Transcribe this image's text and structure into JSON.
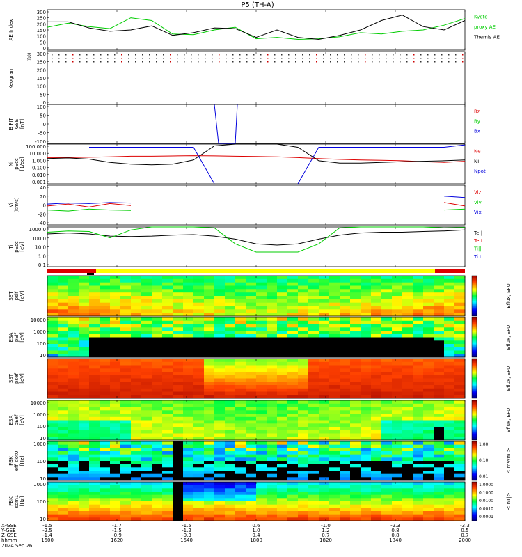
{
  "title": "P5 (TH-A)",
  "panels": [
    {
      "id": "ae",
      "ylabel": "AE Index",
      "yticks": [
        "300",
        "250",
        "200",
        "150",
        "100",
        "50",
        "0"
      ],
      "legend": [
        {
          "text": "Kyoto",
          "color": "#00cc00"
        },
        {
          "text": "proxy AE",
          "color": "#00cc00"
        },
        {
          "text": "Themis AE",
          "color": "#000000"
        }
      ]
    },
    {
      "id": "keogram",
      "ylabel": "Keogram",
      "yticks": [
        "300",
        "250",
        "200",
        "150",
        "100",
        "50",
        "0"
      ],
      "top_label": "(R0)"
    },
    {
      "id": "bfit",
      "ylabel": "B FIT",
      "ylabel2": "GSE",
      "ylabel3": "[nT]",
      "yticks": [
        "100",
        "50",
        "0",
        "-50",
        "-100"
      ],
      "legend": [
        {
          "text": "Bz",
          "color": "#dd0000"
        },
        {
          "text": "By",
          "color": "#00cc00"
        },
        {
          "text": "Bx",
          "color": "#0000dd"
        }
      ]
    },
    {
      "id": "density",
      "ylabel": "Ni",
      "ylabel2": "pEcc",
      "ylabel3": "[1/cc]",
      "yticks": [
        "100.000",
        "10.000",
        "1.000",
        "0.100",
        "0.010",
        "0.001"
      ],
      "legend": [
        {
          "text": "Ne",
          "color": "#dd0000"
        },
        {
          "text": "Ni",
          "color": "#000000"
        },
        {
          "text": "Npot",
          "color": "#0000dd"
        }
      ]
    },
    {
      "id": "velocity",
      "ylabel": "Vi",
      "ylabel2": "[km/s]",
      "yticks": [
        "40",
        "20",
        "0",
        "-20",
        "-40"
      ],
      "legend": [
        {
          "text": "Viz",
          "color": "#dd0000"
        },
        {
          "text": "Viy",
          "color": "#00cc00"
        },
        {
          "text": "Vix",
          "color": "#0000dd"
        }
      ]
    },
    {
      "id": "temperature",
      "ylabel": "Ti",
      "ylabel2": "pEcc",
      "ylabel3": "[eV]",
      "yticks": [
        "1000.0",
        "100.0",
        "10.0",
        "1.0",
        "0.1"
      ],
      "legend": [
        {
          "text": "Te||",
          "color": "#000000"
        },
        {
          "text": "Te⊥",
          "color": "#dd0000"
        },
        {
          "text": "Ti||",
          "color": "#00cc00"
        },
        {
          "text": "Ti⊥",
          "color": "#0000dd"
        }
      ]
    },
    {
      "id": "sst_i",
      "ylabel": "SST",
      "ylabel2": "psif",
      "ylabel3": "[eV]",
      "cb_label": "Eflux, EFU"
    },
    {
      "id": "esa_i",
      "ylabel": "ESA",
      "ylabel2": "pEif",
      "ylabel3": "[eV]",
      "yticks": [
        "10000",
        "1000",
        "100",
        "10"
      ],
      "cb_label": "Eflux, EFU"
    },
    {
      "id": "sst_e",
      "ylabel": "SST",
      "ylabel2": "psef",
      "ylabel3": "[eV]",
      "cb_label": "Eflux, EFU"
    },
    {
      "id": "esa_e",
      "ylabel": "ESA",
      "ylabel2": "pEef",
      "ylabel3": "[eV]",
      "yticks": [
        "10000",
        "1000",
        "100",
        "10"
      ],
      "cb_label": "Eflux, EFU"
    },
    {
      "id": "fbk_e",
      "ylabel": "FBK",
      "ylabel2": "eff_dot0",
      "ylabel3": "[Hz]",
      "yticks": [
        "1000",
        "100",
        "10"
      ],
      "cb_label": "<|mV/m|>",
      "cb_ticks": [
        "1.00",
        "0.10",
        "0.01"
      ]
    },
    {
      "id": "fbk_b",
      "ylabel": "FBK",
      "ylabel2": "scm1",
      "ylabel3": "[Hz]",
      "yticks": [
        "1000",
        "100",
        "10"
      ],
      "cb_label": "<|nT|>",
      "cb_ticks": [
        "1.0000",
        "0.1000",
        "0.0100",
        "0.0010",
        "0.0001"
      ]
    }
  ],
  "footer": {
    "rows": [
      {
        "label": "X-GSE",
        "values": [
          "-1.5",
          "-1.7",
          "-1.5",
          "0.6",
          "-1.0",
          "-2.3",
          "-3.3"
        ]
      },
      {
        "label": "Y-GSE",
        "values": [
          "-2.5",
          "-1.5",
          "-1.2",
          "1.0",
          "1.2",
          "0.8",
          "0.5"
        ]
      },
      {
        "label": "Z-GSE",
        "values": [
          "-1.4",
          "-0.9",
          "-0.3",
          "0.4",
          "0.7",
          "0.8",
          "0.7"
        ]
      },
      {
        "label": "hhmm",
        "values": [
          "1600",
          "1620",
          "1640",
          "1800",
          "1820",
          "1840",
          "2000"
        ]
      }
    ],
    "date": "2024 Sep 26"
  },
  "chart_data": [
    {
      "type": "line",
      "panel": "ae",
      "ylabel": "AE Index",
      "ylim": [
        0,
        300
      ],
      "x": [
        0,
        0.05,
        0.1,
        0.15,
        0.2,
        0.25,
        0.3,
        0.35,
        0.4,
        0.45,
        0.5,
        0.55,
        0.6,
        0.65,
        0.7,
        0.75,
        0.8,
        0.85,
        0.9,
        0.95,
        1.0
      ],
      "series": [
        {
          "name": "Kyoto proxy AE",
          "color": "#00cc00",
          "values": [
            170,
            200,
            175,
            160,
            240,
            220,
            120,
            115,
            150,
            170,
            85,
            95,
            80,
            85,
            100,
            130,
            120,
            140,
            150,
            185,
            235
          ]
        },
        {
          "name": "Themis AE",
          "color": "#000000",
          "values": [
            210,
            210,
            165,
            140,
            150,
            180,
            110,
            130,
            165,
            160,
            95,
            150,
            95,
            80,
            110,
            150,
            220,
            260,
            175,
            150,
            220
          ]
        }
      ]
    },
    {
      "type": "line",
      "panel": "bfit",
      "ylim": [
        -100,
        100
      ],
      "series": [
        {
          "name": "Bx",
          "color": "#0000dd",
          "points": [
            [
              0.4,
              100
            ],
            [
              0.41,
              -100
            ],
            [
              0.45,
              -100
            ],
            [
              0.455,
              100
            ]
          ]
        }
      ]
    },
    {
      "type": "line",
      "panel": "density",
      "ylim": [
        0.001,
        100
      ],
      "scale": "log",
      "series": [
        {
          "name": "Ne",
          "color": "#dd0000",
          "values": [
            2,
            2,
            2.2,
            2.5,
            3,
            3,
            3.2,
            3.5,
            3.3,
            3,
            2.8,
            2.5,
            2,
            1.5,
            1.2,
            1,
            0.9,
            0.8,
            0.6,
            0.5,
            0.7
          ]
        },
        {
          "name": "Ni",
          "color": "#000000",
          "values": [
            1.5,
            1.8,
            1.3,
            0.5,
            0.3,
            0.25,
            0.3,
            1,
            60,
            100,
            100,
            100,
            40,
            0.8,
            0.4,
            0.4,
            0.5,
            0.6,
            0.7,
            0.8,
            1
          ]
        },
        {
          "name": "Npot",
          "color": "#0000dd",
          "values": [
            null,
            null,
            40,
            40,
            40,
            40,
            40,
            40,
            0.001,
            null,
            null,
            null,
            0.001,
            40,
            40,
            40,
            40,
            40,
            40,
            40,
            80
          ]
        }
      ]
    },
    {
      "type": "line",
      "panel": "velocity",
      "ylim": [
        -40,
        40
      ],
      "series": [
        {
          "name": "Viz",
          "color": "#dd0000",
          "values": [
            -2,
            2,
            -4,
            3,
            -1,
            null,
            null,
            null,
            null,
            null,
            null,
            null,
            null,
            null,
            null,
            null,
            null,
            null,
            null,
            5,
            -2
          ]
        },
        {
          "name": "Viy",
          "color": "#00cc00",
          "values": [
            -10,
            -12,
            -8,
            -10,
            -11,
            null,
            null,
            null,
            null,
            null,
            null,
            null,
            null,
            null,
            null,
            null,
            null,
            null,
            null,
            -10,
            -8
          ]
        },
        {
          "name": "Vix",
          "color": "#0000dd",
          "values": [
            2,
            4,
            3,
            5,
            4,
            null,
            null,
            null,
            null,
            null,
            null,
            null,
            null,
            null,
            null,
            null,
            null,
            null,
            null,
            18,
            15
          ]
        }
      ]
    },
    {
      "type": "line",
      "panel": "temperature",
      "ylim": [
        0.1,
        1000
      ],
      "scale": "log",
      "series": [
        {
          "name": "Te||",
          "color": "#000000",
          "values": [
            200,
            250,
            200,
            120,
            110,
            120,
            150,
            170,
            120,
            60,
            20,
            15,
            20,
            60,
            150,
            250,
            300,
            300,
            350,
            400,
            500
          ]
        },
        {
          "name": "Ti||",
          "color": "#00cc00",
          "values": [
            300,
            400,
            350,
            80,
            500,
            1000,
            1000,
            1000,
            800,
            20,
            3,
            3,
            3,
            20,
            800,
            1000,
            1000,
            1000,
            1000,
            800,
            900
          ]
        }
      ]
    },
    {
      "type": "heatmap",
      "panel": "sst_i",
      "zlabel": "Eflux, EFU"
    },
    {
      "type": "heatmap",
      "panel": "esa_i",
      "zlabel": "Eflux, EFU"
    },
    {
      "type": "heatmap",
      "panel": "sst_e",
      "zlabel": "Eflux, EFU"
    },
    {
      "type": "heatmap",
      "panel": "esa_e",
      "zlabel": "Eflux, EFU"
    },
    {
      "type": "heatmap",
      "panel": "fbk_e",
      "zlabel": "<|mV/m|>"
    },
    {
      "type": "heatmap",
      "panel": "fbk_b",
      "zlabel": "<|nT|>"
    }
  ]
}
